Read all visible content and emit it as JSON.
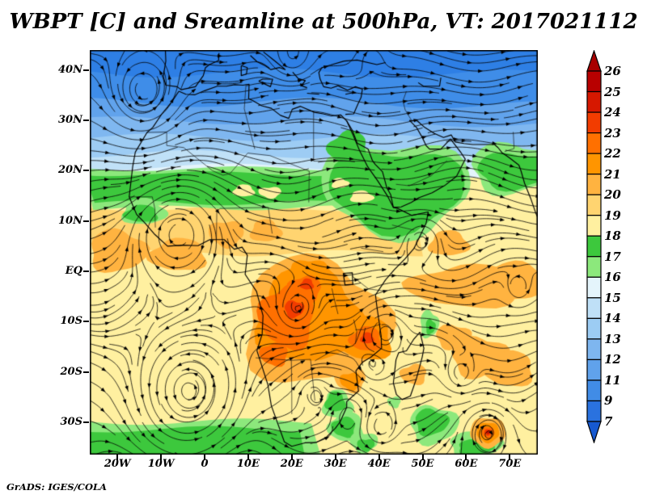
{
  "chart_data": {
    "type": "heatmap",
    "subtype": "filled-contour weather map with streamline overlay",
    "title": "WBPT [C] and Sreamline at 500hPa, VT: 2017021112",
    "variable": "WBPT",
    "units": "C",
    "level": "500hPa",
    "valid_time": "2017021112",
    "credit": "GrADS: IGES/COLA",
    "lon_tick_labels": [
      "20W",
      "10W",
      "0",
      "10E",
      "20E",
      "30E",
      "40E",
      "50E",
      "60E",
      "70E"
    ],
    "lon_tick_values": [
      -20,
      -10,
      0,
      10,
      20,
      30,
      40,
      50,
      60,
      70
    ],
    "lat_tick_labels": [
      "40N",
      "30N",
      "20N",
      "10N",
      "EQ",
      "10S",
      "20S",
      "30S"
    ],
    "lat_tick_values": [
      40,
      30,
      20,
      10,
      0,
      -10,
      -20,
      -30
    ],
    "lon_range": [
      -26.3,
      76.4
    ],
    "lat_range": [
      -36.4,
      44.0
    ],
    "grid": false,
    "legend_position": "right colorbar",
    "colorbar": {
      "tick_labels": [
        "26",
        "25",
        "24",
        "23",
        "22",
        "21",
        "20",
        "19",
        "18",
        "17",
        "16",
        "15",
        "14",
        "13",
        "12",
        "11",
        "9",
        "7"
      ],
      "levels": [
        26,
        25,
        24,
        23,
        22,
        21,
        20,
        19,
        18,
        17,
        16,
        15,
        14,
        13,
        12,
        11,
        9,
        7
      ],
      "colors_top_to_bottom": [
        "#A80000",
        "#B80000",
        "#D61800",
        "#F23C00",
        "#FF7000",
        "#FF9500",
        "#FFB340",
        "#FFD470",
        "#FFF0A0",
        "#3DC83D",
        "#8CE87C",
        "#E4F4FB",
        "#BFE0F7",
        "#9CCCF3",
        "#7EB6EF",
        "#60A2EB",
        "#418CE6",
        "#2A72DF",
        "#1659D1"
      ]
    },
    "features": {
      "vortex_centers_lon_lat": [
        [
          -14,
          35.5
        ],
        [
          20,
          42.5
        ],
        [
          -6,
          8
        ],
        [
          -3.5,
          -24
        ],
        [
          41,
          -12
        ],
        [
          33,
          -28.5
        ],
        [
          40,
          -31
        ],
        [
          65,
          -32
        ],
        [
          58.5,
          -20.5
        ],
        [
          25,
          -24
        ]
      ],
      "warm_cores_lon_lat": [
        [
          20.5,
          -7.5
        ],
        [
          37.5,
          -13.5
        ],
        [
          65,
          -32
        ]
      ],
      "pattern": "Cold blue WBPT (7-15C) north of 20N with cyclone near 14W 35N; green 16-18C band along the Sahel widening over Sudan, Ethiopia and Arabia; warm 19-24C oranges over tropical and southern Africa with maxima (23-24C) over Angola-Congo-Zambia and Tanzania-Mozambique; 17-18C green patches south of 30S; small cyclonic eddy with 24-25C core near 65E 32S."
    }
  }
}
